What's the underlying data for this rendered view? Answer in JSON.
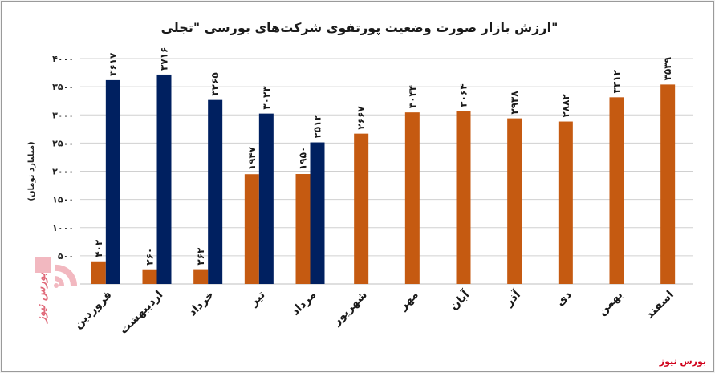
{
  "chart_data": {
    "type": "bar",
    "title": "ارزش بازار صورت وضعیت پورتفوی شرکت‌های بورسی \"تجلی\"",
    "ylabel": "(میلیارد تومان)",
    "ylim": [
      0,
      4000
    ],
    "yticks": [
      0,
      500,
      1000,
      1500,
      2000,
      2500,
      3000,
      3500,
      4000
    ],
    "ytick_labels": [
      "",
      "۵۰۰",
      "۱۰۰۰",
      "۱۵۰۰",
      "۲۰۰۰",
      "۲۵۰۰",
      "۳۰۰۰",
      "۳۵۰۰",
      "۴۰۰۰"
    ],
    "grid": true,
    "categories": [
      "فروردین",
      "اردیبهشت",
      "خرداد",
      "تیر",
      "مرداد",
      "شهریور",
      "مهر",
      "آبان",
      "آذر",
      "دی",
      "بهمن",
      "اسفند"
    ],
    "series": [
      {
        "color": "#c55a11",
        "values": [
          402,
          260,
          262,
          1947,
          1950,
          2667,
          3044,
          3064,
          2938,
          2882,
          3312,
          3539
        ],
        "labels": [
          "۴۰۲",
          "۲۶۰",
          "۲۶۲",
          "۱۹۴۷",
          "۱۹۵۰",
          "۲۶۶۷",
          "۳۰۴۴",
          "۳۰۶۴",
          "۲۹۳۸",
          "۲۸۸۲",
          "۳۳۱۲",
          "۳۵۳۹"
        ]
      },
      {
        "color": "#002060",
        "values": [
          3617,
          3716,
          3265,
          3023,
          2512,
          null,
          null,
          null,
          null,
          null,
          null,
          null
        ],
        "labels": [
          "۳۶۱۷",
          "۳۷۱۶",
          "۳۲۶۵",
          "۳۰۲۳",
          "۲۵۱۲",
          "",
          "",
          "",
          "",
          "",
          "",
          ""
        ]
      }
    ],
    "source": "بورس نیوز",
    "logo": "بورس نیوز"
  }
}
